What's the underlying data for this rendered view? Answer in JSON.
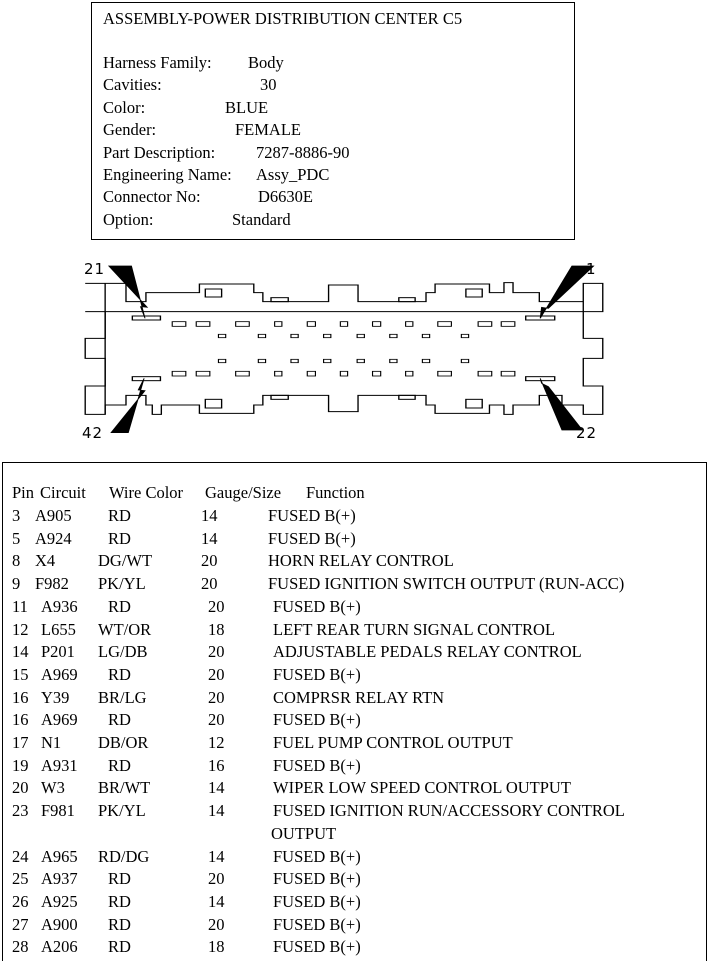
{
  "info": {
    "title": "ASSEMBLY-POWER DISTRIBUTION CENTER C5",
    "fields": [
      {
        "label": "Harness Family:",
        "value": "Body"
      },
      {
        "label": "Cavities:",
        "value": "30"
      },
      {
        "label": "Color:",
        "value": "BLUE"
      },
      {
        "label": "Gender:",
        "value": "FEMALE"
      },
      {
        "label": "Part Description:",
        "value": "7287-8886-90"
      },
      {
        "label": "Engineering Name:",
        "value": "Assy_PDC"
      },
      {
        "label": "Connector No:",
        "value": "D6630E"
      },
      {
        "label": "Option:",
        "value": "Standard"
      }
    ]
  },
  "connector": {
    "pin_labels": {
      "top_left": "21",
      "top_right": "1",
      "bottom_left": "42",
      "bottom_right": "22"
    }
  },
  "table": {
    "header": {
      "pin": "Pin",
      "circuit": "Circuit",
      "wire_color": "Wire Color",
      "gauge": "Gauge/Size",
      "function": "Function"
    },
    "rows": [
      {
        "pin": "3",
        "circuit": "A905",
        "color": "RD",
        "gauge": "14",
        "function": "FUSED B(+)"
      },
      {
        "pin": "5",
        "circuit": "A924",
        "color": "RD",
        "gauge": "14",
        "function": "FUSED B(+)"
      },
      {
        "pin": "8",
        "circuit": "X4",
        "color": "DG/WT",
        "gauge": "20",
        "function": "HORN RELAY CONTROL"
      },
      {
        "pin": "9",
        "circuit": "F982",
        "color": "PK/YL",
        "gauge": "20",
        "function": "FUSED IGNITION SWITCH OUTPUT (RUN-ACC)"
      },
      {
        "pin": "11",
        "circuit": "A936",
        "color": "RD",
        "gauge": "20",
        "function": "FUSED B(+)"
      },
      {
        "pin": "12",
        "circuit": "L655",
        "color": "WT/OR",
        "gauge": "18",
        "function": "LEFT REAR TURN SIGNAL CONTROL"
      },
      {
        "pin": "14",
        "circuit": "P201",
        "color": "LG/DB",
        "gauge": "20",
        "function": "ADJUSTABLE PEDALS RELAY CONTROL"
      },
      {
        "pin": "15",
        "circuit": "A969",
        "color": "RD",
        "gauge": "20",
        "function": "FUSED B(+)"
      },
      {
        "pin": "16",
        "circuit": "Y39",
        "color": "BR/LG",
        "gauge": "20",
        "function": "COMPRSR RELAY RTN"
      },
      {
        "pin": "16",
        "circuit": "A969",
        "color": "RD",
        "gauge": "20",
        "function": "FUSED B(+)"
      },
      {
        "pin": "17",
        "circuit": "N1",
        "color": "DB/OR",
        "gauge": "12",
        "function": "FUEL PUMP CONTROL OUTPUT"
      },
      {
        "pin": "19",
        "circuit": "A931",
        "color": "RD",
        "gauge": "16",
        "function": "FUSED B(+)"
      },
      {
        "pin": "20",
        "circuit": "W3",
        "color": "BR/WT",
        "gauge": "14",
        "function": "WIPER LOW SPEED CONTROL OUTPUT"
      },
      {
        "pin": "23",
        "circuit": "F981",
        "color": "PK/YL",
        "gauge": "14",
        "function": "FUSED IGNITION RUN/ACCESSORY CONTROL",
        "function_cont": "OUTPUT"
      },
      {
        "pin": "24",
        "circuit": "A965",
        "color": "RD/DG",
        "gauge": "14",
        "function": "FUSED B(+)"
      },
      {
        "pin": "25",
        "circuit": "A937",
        "color": "RD",
        "gauge": "20",
        "function": "FUSED B(+)"
      },
      {
        "pin": "26",
        "circuit": "A925",
        "color": "RD",
        "gauge": "14",
        "function": "FUSED B(+)"
      },
      {
        "pin": "27",
        "circuit": "A900",
        "color": "RD",
        "gauge": "20",
        "function": "FUSED B(+)"
      },
      {
        "pin": "28",
        "circuit": "A206",
        "color": "RD",
        "gauge": "18",
        "function": "FUSED B(+)"
      }
    ]
  }
}
